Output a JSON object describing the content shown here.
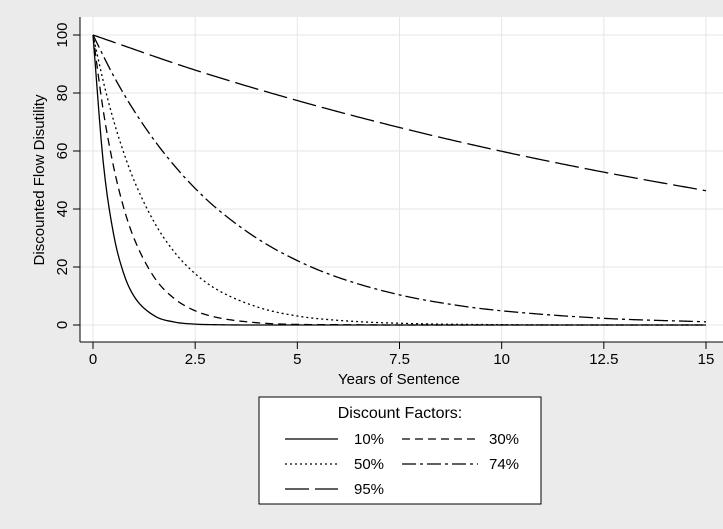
{
  "chart_data": {
    "type": "line",
    "title": "",
    "xlabel": "Years of Sentence",
    "ylabel": "Discounted Flow Disutility",
    "xlim": [
      0,
      15
    ],
    "ylim": [
      0,
      100
    ],
    "xticks": [
      0,
      2.5,
      5,
      7.5,
      10,
      12.5,
      15
    ],
    "xtick_labels": [
      "0",
      "2.5",
      "5",
      "7.5",
      "10",
      "12.5",
      "15"
    ],
    "yticks": [
      0,
      20,
      40,
      60,
      80,
      100
    ],
    "ytick_labels": [
      "0",
      "20",
      "40",
      "60",
      "80",
      "100"
    ],
    "grid": true,
    "legend": {
      "title": "Discount Factors:",
      "position": "bottom"
    },
    "series": [
      {
        "name": "10%",
        "style": "solid",
        "x": [
          0,
          0.25,
          0.5,
          0.75,
          1,
          1.5,
          2,
          2.5,
          3,
          4,
          5,
          7.5,
          10,
          15
        ],
        "values": [
          100,
          56.2,
          31.6,
          17.8,
          10,
          3.2,
          1,
          0.3,
          0.1,
          0,
          0,
          0,
          0,
          0
        ]
      },
      {
        "name": "30%",
        "style": "dashed",
        "x": [
          0,
          0.25,
          0.5,
          0.75,
          1,
          1.5,
          2,
          2.5,
          3,
          4,
          5,
          6,
          7.5,
          10,
          15
        ],
        "values": [
          100,
          74,
          54.8,
          40.5,
          30,
          16.4,
          9,
          4.9,
          2.7,
          0.8,
          0.2,
          0.1,
          0,
          0,
          0
        ]
      },
      {
        "name": "50%",
        "style": "dotted",
        "x": [
          0,
          0.25,
          0.5,
          0.75,
          1,
          1.5,
          2,
          2.5,
          3,
          4,
          5,
          6,
          7.5,
          10,
          12.5,
          15
        ],
        "values": [
          100,
          84.1,
          70.7,
          59.5,
          50,
          35.4,
          25,
          17.7,
          12.5,
          6.3,
          3.1,
          1.6,
          0.6,
          0.1,
          0,
          0
        ]
      },
      {
        "name": "74%",
        "style": "dashdot",
        "x": [
          0,
          0.5,
          1,
          1.5,
          2,
          2.5,
          3,
          4,
          5,
          6,
          7.5,
          9,
          10,
          12.5,
          15
        ],
        "values": [
          100,
          86,
          74,
          63.7,
          54.8,
          47.1,
          40.5,
          30,
          22.2,
          16.4,
          10.4,
          6.6,
          4.9,
          2.3,
          1.1
        ]
      },
      {
        "name": "95%",
        "style": "longdash",
        "x": [
          0,
          2.5,
          5,
          7.5,
          10,
          12.5,
          15
        ],
        "values": [
          100,
          87.9,
          77.4,
          68.1,
          59.9,
          52.7,
          46.3
        ]
      }
    ]
  }
}
